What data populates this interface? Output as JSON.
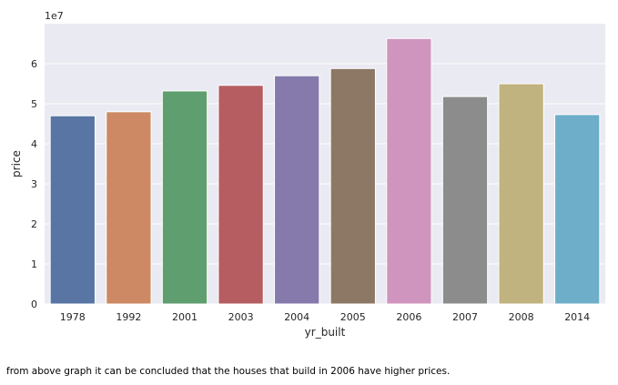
{
  "chart_data": {
    "type": "bar",
    "categories": [
      "1978",
      "1992",
      "2001",
      "2003",
      "2004",
      "2005",
      "2006",
      "2007",
      "2008",
      "2014"
    ],
    "values": [
      47000000,
      48000000,
      53200000,
      54600000,
      57000000,
      58800000,
      66300000,
      51800000,
      55000000,
      47300000
    ],
    "xlabel": "yr_built",
    "ylabel": "price",
    "offset_text": "1e7",
    "ylim": [
      0,
      70000000
    ],
    "yticks": [
      0,
      10000000,
      20000000,
      30000000,
      40000000,
      50000000,
      60000000
    ],
    "ytick_labels": [
      "0",
      "1",
      "2",
      "3",
      "4",
      "5",
      "6"
    ],
    "grid": true,
    "background": "#eaeaf2",
    "colors": [
      "#5875a4",
      "#cc8963",
      "#5f9e6e",
      "#b55d60",
      "#857aab",
      "#8d7866",
      "#d095bf",
      "#8c8c8c",
      "#c1b37f",
      "#6eaec9"
    ]
  },
  "caption": "from above graph it can be concluded that the houses that build in 2006 have higher prices."
}
